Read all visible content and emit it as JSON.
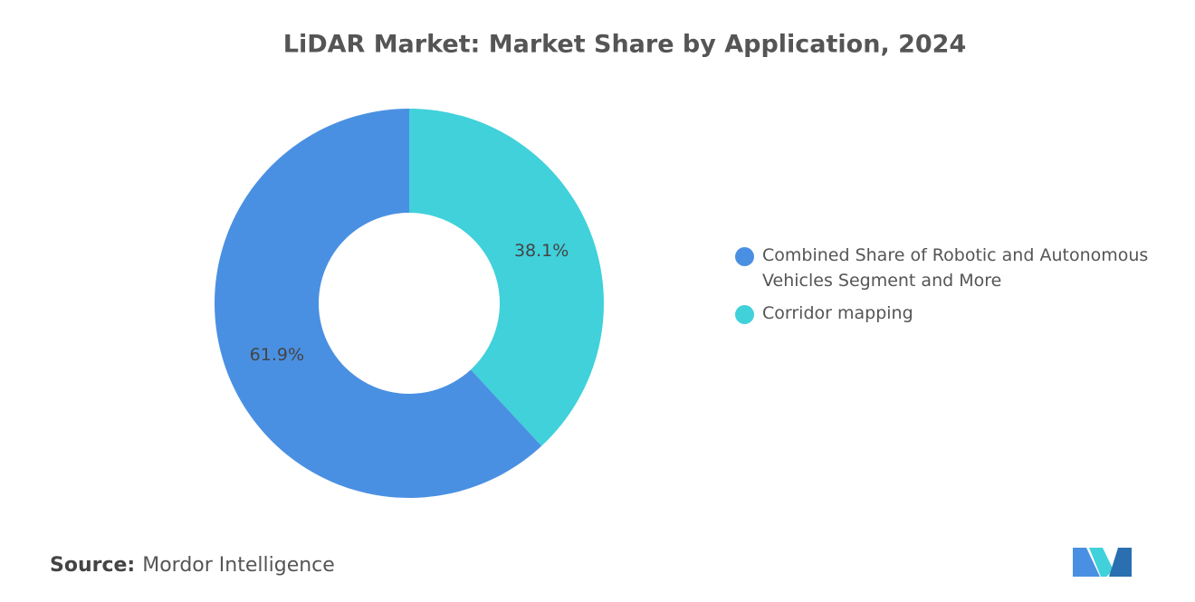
{
  "chart_data": {
    "type": "donut",
    "title": "LiDAR Market: Market Share by Application, 2024",
    "categories": [
      "Combined Share of Robotic and Autonomous Vehicles Segment and More",
      "Corridor mapping"
    ],
    "values": [
      61.9,
      38.1
    ],
    "value_labels": [
      "61.9%",
      "38.1%"
    ],
    "colors": [
      "#4a90e2",
      "#40d1db"
    ],
    "source_label": "Source:",
    "source": "Mordor Intelligence"
  }
}
